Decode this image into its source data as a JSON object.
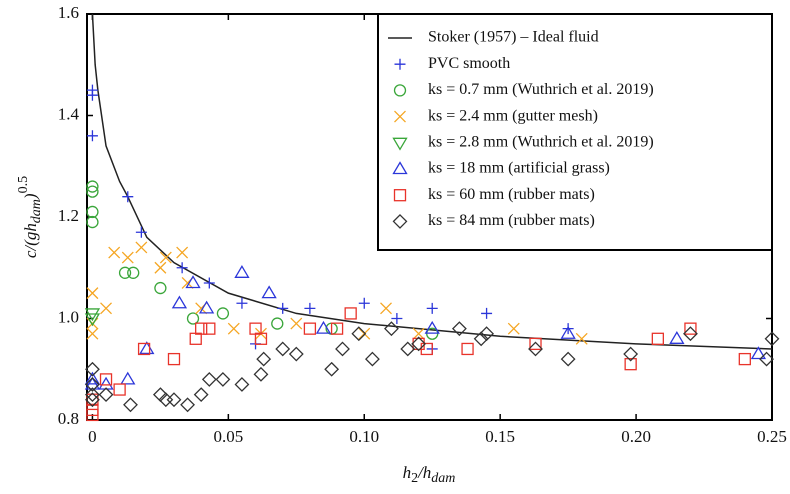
{
  "chart_data": {
    "type": "scatter",
    "ylabel": [
      "c/(gh",
      "dam",
      ")",
      "0.5"
    ],
    "xlabel": [
      "h",
      "2",
      "/h",
      "dam"
    ],
    "xlim": [
      -0.002,
      0.25
    ],
    "ylim": [
      0.8,
      1.6
    ],
    "xticks": [
      0,
      0.05,
      {
        "value": 0.1,
        "label": "0.10"
      },
      0.15,
      {
        "value": 0.2,
        "label": "0.20"
      },
      0.25
    ],
    "yticks": [
      {
        "value": 0.8,
        "label": "0.8"
      },
      {
        "value": 1.0,
        "label": "1.0"
      },
      1.2,
      1.4,
      1.6
    ],
    "legend": "upper right",
    "series": [
      {
        "name": "Stoker (1957) – Ideal fluid",
        "color": "#222222",
        "marker": "line",
        "x": [
          0,
          0.001,
          0.002,
          0.005,
          0.01,
          0.013,
          0.02,
          0.03,
          0.05,
          0.075,
          0.1,
          0.15,
          0.2,
          0.25
        ],
        "values": [
          1.6,
          1.5,
          1.45,
          1.34,
          1.27,
          1.24,
          1.16,
          1.11,
          1.05,
          1.01,
          0.99,
          0.965,
          0.95,
          0.94
        ]
      },
      {
        "name": "PVC smooth",
        "color": "#2b36d9",
        "marker": "plus",
        "x": [
          0,
          0,
          0,
          0.013,
          0.018,
          0.033,
          0.043,
          0.055,
          0.06,
          0.07,
          0.08,
          0.1,
          0.125,
          0.112,
          0.145,
          0.175,
          0.125
        ],
        "values": [
          1.45,
          1.44,
          1.36,
          1.24,
          1.17,
          1.1,
          1.07,
          1.03,
          0.95,
          1.02,
          1.02,
          1.03,
          1.02,
          1.0,
          1.01,
          0.98,
          0.94
        ]
      },
      {
        "name": "ks = 0.7 mm (Wuthrich et al. 2019)",
        "color": "#3aa63a",
        "marker": "circle",
        "x": [
          0,
          0,
          0,
          0,
          0.012,
          0.015,
          0.025,
          0.037,
          0.048,
          0.068,
          0.088,
          0.125
        ],
        "values": [
          1.26,
          1.25,
          1.21,
          1.19,
          1.09,
          1.09,
          1.06,
          1.0,
          1.01,
          0.99,
          0.98,
          0.97
        ]
      },
      {
        "name": "ks = 2.4 mm (gutter mesh)",
        "color": "#f5a623",
        "marker": "x",
        "x": [
          0,
          0,
          0,
          0.005,
          0.008,
          0.013,
          0.018,
          0.025,
          0.027,
          0.033,
          0.035,
          0.04,
          0.052,
          0.062,
          0.075,
          0.1,
          0.108,
          0.12,
          0.155,
          0.18
        ],
        "values": [
          1.05,
          0.99,
          0.97,
          1.02,
          1.13,
          1.12,
          1.14,
          1.1,
          1.12,
          1.13,
          1.07,
          1.02,
          0.98,
          0.97,
          0.99,
          0.97,
          1.02,
          0.97,
          0.98,
          0.96
        ]
      },
      {
        "name": "ks = 2.8 mm (Wuthrich et al. 2019)",
        "color": "#3aa63a",
        "marker": "triangle-down",
        "x": [
          0,
          0
        ],
        "values": [
          1.01,
          1.0
        ]
      },
      {
        "name": "ks = 18 mm (artificial grass)",
        "color": "#2b36d9",
        "marker": "triangle",
        "x": [
          0,
          0,
          0.005,
          0.013,
          0.02,
          0.032,
          0.037,
          0.042,
          0.055,
          0.065,
          0.085,
          0.125,
          0.175,
          0.215,
          0.245
        ],
        "values": [
          0.88,
          0.87,
          0.87,
          0.88,
          0.94,
          1.03,
          1.07,
          1.02,
          1.09,
          1.05,
          0.98,
          0.98,
          0.97,
          0.96,
          0.93
        ]
      },
      {
        "name": "ks = 60 mm (rubber mats)",
        "color": "#e8332a",
        "marker": "square",
        "x": [
          0,
          0,
          0,
          0.005,
          0.01,
          0.019,
          0.03,
          0.038,
          0.04,
          0.043,
          0.06,
          0.062,
          0.08,
          0.09,
          0.095,
          0.12,
          0.123,
          0.138,
          0.163,
          0.198,
          0.208,
          0.22,
          0.24
        ],
        "values": [
          0.84,
          0.82,
          0.81,
          0.88,
          0.86,
          0.94,
          0.92,
          0.96,
          0.98,
          0.98,
          0.98,
          0.96,
          0.98,
          0.98,
          1.01,
          0.95,
          0.94,
          0.94,
          0.95,
          0.91,
          0.96,
          0.98,
          0.92
        ]
      },
      {
        "name": "ks = 84 mm (rubber mats)",
        "color": "#333333",
        "marker": "diamond",
        "x": [
          0,
          0,
          0,
          0,
          0.005,
          0.014,
          0.025,
          0.027,
          0.03,
          0.035,
          0.04,
          0.043,
          0.048,
          0.055,
          0.062,
          0.063,
          0.07,
          0.075,
          0.088,
          0.092,
          0.098,
          0.103,
          0.11,
          0.116,
          0.12,
          0.135,
          0.143,
          0.145,
          0.163,
          0.175,
          0.198,
          0.22,
          0.248,
          0.25
        ],
        "values": [
          0.9,
          0.87,
          0.85,
          0.84,
          0.85,
          0.83,
          0.85,
          0.84,
          0.84,
          0.83,
          0.85,
          0.88,
          0.88,
          0.87,
          0.89,
          0.92,
          0.94,
          0.93,
          0.9,
          0.94,
          0.97,
          0.92,
          0.98,
          0.94,
          0.95,
          0.98,
          0.96,
          0.97,
          0.94,
          0.92,
          0.93,
          0.97,
          0.92,
          0.96
        ]
      }
    ]
  }
}
